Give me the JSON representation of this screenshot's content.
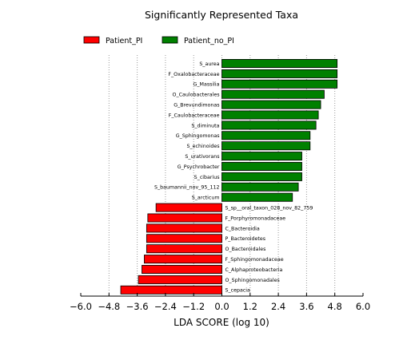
{
  "chart_data": {
    "type": "bar",
    "orientation": "horizontal",
    "title": "Significantly Represented Taxa",
    "xlabel": "LDA SCORE (log 10)",
    "ylabel": "",
    "xlim": [
      -6.0,
      6.0
    ],
    "xticks": [
      -6.0,
      -4.8,
      -3.6,
      -2.4,
      -1.2,
      0.0,
      1.2,
      2.4,
      3.6,
      4.8,
      6.0
    ],
    "xtick_labels": [
      "−6.0",
      "−4.8",
      "−3.6",
      "−2.4",
      "−1.2",
      "0.0",
      "1.2",
      "2.4",
      "3.6",
      "4.8",
      "6.0"
    ],
    "grid": "vertical dotted",
    "legend_position": "top-left",
    "series": [
      {
        "name": "Patient_PI",
        "color": "#ff0000"
      },
      {
        "name": "Patient_no_PI",
        "color": "#008000"
      }
    ],
    "bars": [
      {
        "label": "S_aurea",
        "value": 4.9,
        "group": "Patient_no_PI"
      },
      {
        "label": "F_Oxalobacteraceae",
        "value": 4.9,
        "group": "Patient_no_PI"
      },
      {
        "label": "G_Massilia",
        "value": 4.9,
        "group": "Patient_no_PI"
      },
      {
        "label": "O_Caulobacterales",
        "value": 4.35,
        "group": "Patient_no_PI"
      },
      {
        "label": "G_Brevundimonas",
        "value": 4.2,
        "group": "Patient_no_PI"
      },
      {
        "label": "F_Caulobacteraceae",
        "value": 4.1,
        "group": "Patient_no_PI"
      },
      {
        "label": "S_diminuta",
        "value": 4.0,
        "group": "Patient_no_PI"
      },
      {
        "label": "G_Sphingomonas",
        "value": 3.75,
        "group": "Patient_no_PI"
      },
      {
        "label": "S_echinoides",
        "value": 3.75,
        "group": "Patient_no_PI"
      },
      {
        "label": "S_urativorans",
        "value": 3.4,
        "group": "Patient_no_PI"
      },
      {
        "label": "G_Psychrobacter",
        "value": 3.4,
        "group": "Patient_no_PI"
      },
      {
        "label": "S_cibarius",
        "value": 3.4,
        "group": "Patient_no_PI"
      },
      {
        "label": "S_baumannii_nov_95_112",
        "value": 3.25,
        "group": "Patient_no_PI"
      },
      {
        "label": "S_arcticum",
        "value": 3.0,
        "group": "Patient_no_PI"
      },
      {
        "label": "S_sp__oral_taxon_028_nov_82_759",
        "value": -2.8,
        "group": "Patient_PI"
      },
      {
        "label": "F_Porphyromonadaceae",
        "value": -3.15,
        "group": "Patient_PI"
      },
      {
        "label": "C_Bacteroidia",
        "value": -3.2,
        "group": "Patient_PI"
      },
      {
        "label": "P_Bacteroidetes",
        "value": -3.2,
        "group": "Patient_PI"
      },
      {
        "label": "O_Bacteroidales",
        "value": -3.2,
        "group": "Patient_PI"
      },
      {
        "label": "F_Sphingomonadaceae",
        "value": -3.3,
        "group": "Patient_PI"
      },
      {
        "label": "C_Alphaproteobacteria",
        "value": -3.4,
        "group": "Patient_PI"
      },
      {
        "label": "O_Sphingomonadales",
        "value": -3.55,
        "group": "Patient_PI"
      },
      {
        "label": "S_cepacia",
        "value": -4.3,
        "group": "Patient_PI"
      }
    ]
  }
}
